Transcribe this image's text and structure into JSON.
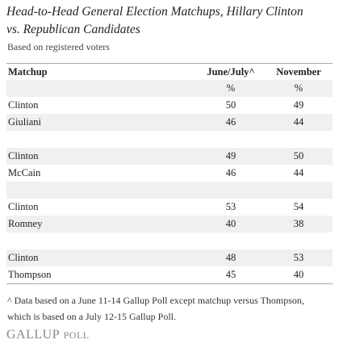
{
  "header": {
    "title": "Head-to-Head General Election Matchups, Hillary Clinton vs. Republican Candidates",
    "subtitle": "Based on registered voters"
  },
  "table": {
    "columns": [
      "Matchup",
      "June/July^",
      "November"
    ],
    "units": [
      "%",
      "%"
    ],
    "groups": [
      [
        [
          "Clinton",
          50,
          49
        ],
        [
          "Giuliani",
          46,
          44
        ]
      ],
      [
        [
          "Clinton",
          49,
          50
        ],
        [
          "McCain",
          46,
          44
        ]
      ],
      [
        [
          "Clinton",
          53,
          54
        ],
        [
          "Romney",
          40,
          38
        ]
      ],
      [
        [
          "Clinton",
          48,
          53
        ],
        [
          "Thompson",
          45,
          40
        ]
      ]
    ]
  },
  "footnote": "^ Data based on a June 11-14 Gallup Poll except matchup versus Thompson, which is based on a July 12-15 Gallup Poll.",
  "logo": {
    "name": "GALLUP",
    "product": "POLL"
  }
}
